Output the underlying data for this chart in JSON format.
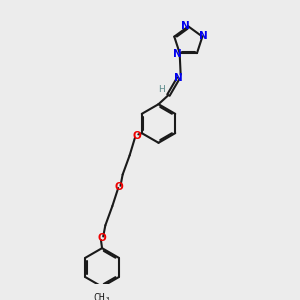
{
  "bg_color": "#ececec",
  "bond_color": "#1a1a1a",
  "nitrogen_color": "#0000ee",
  "oxygen_color": "#ee0000",
  "carbon_color": "#1a1a1a",
  "h_color": "#5a8a8a",
  "figsize": [
    3.0,
    3.0
  ],
  "dpi": 100,
  "xlim": [
    0,
    10
  ],
  "ylim": [
    0,
    10
  ]
}
